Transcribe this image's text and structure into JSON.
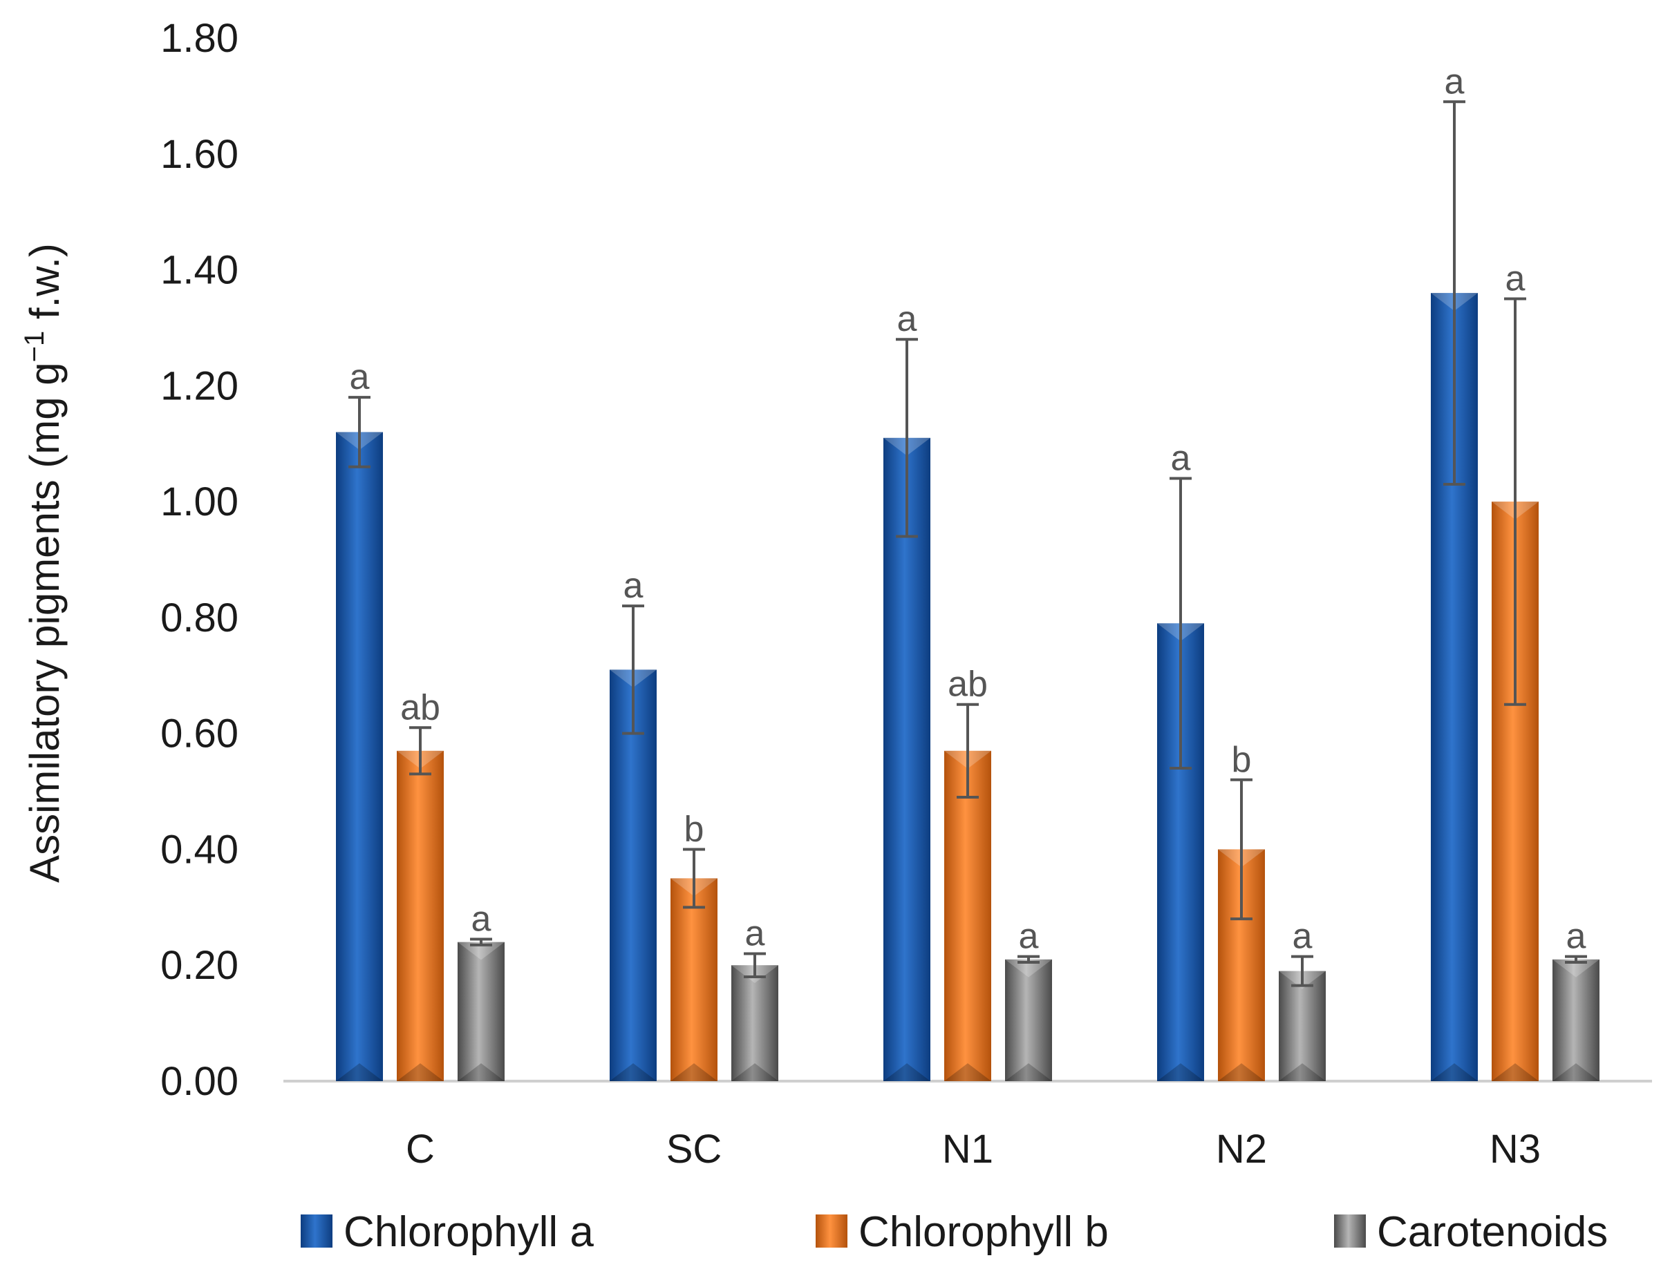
{
  "chart_data": {
    "type": "bar",
    "title": "",
    "xlabel": "",
    "ylabel": "Assimilatory pigments (mg g",
    "ylabel_superscript": "−1",
    "ylabel_suffix": " f.w.)",
    "ylim": [
      0,
      1.8
    ],
    "yticks": [
      "0.00",
      "0.20",
      "0.40",
      "0.60",
      "0.80",
      "1.00",
      "1.20",
      "1.40",
      "1.60",
      "1.80"
    ],
    "categories": [
      "C",
      "SC",
      "N1",
      "N2",
      "N3"
    ],
    "series": [
      {
        "name": "Chlorophyll a",
        "color": "#1f5fb4",
        "values": [
          1.12,
          0.71,
          1.11,
          0.79,
          1.36
        ],
        "errors": [
          0.06,
          0.11,
          0.17,
          0.25,
          0.33
        ],
        "significance": [
          "a",
          "a",
          "a",
          "a",
          "a"
        ]
      },
      {
        "name": "Chlorophyll b",
        "color": "#f07a1e",
        "values": [
          0.57,
          0.35,
          0.57,
          0.4,
          1.0
        ],
        "errors": [
          0.04,
          0.05,
          0.08,
          0.12,
          0.35
        ],
        "significance": [
          "ab",
          "b",
          "ab",
          "b",
          "a"
        ]
      },
      {
        "name": "Carotenoids",
        "color": "#8c8c8c",
        "values": [
          0.24,
          0.2,
          0.21,
          0.19,
          0.21
        ],
        "errors": [
          0.005,
          0.02,
          0.005,
          0.025,
          0.005
        ],
        "significance": [
          "a",
          "a",
          "a",
          "a",
          "a"
        ]
      }
    ],
    "legend_position": "bottom",
    "grid": false
  }
}
